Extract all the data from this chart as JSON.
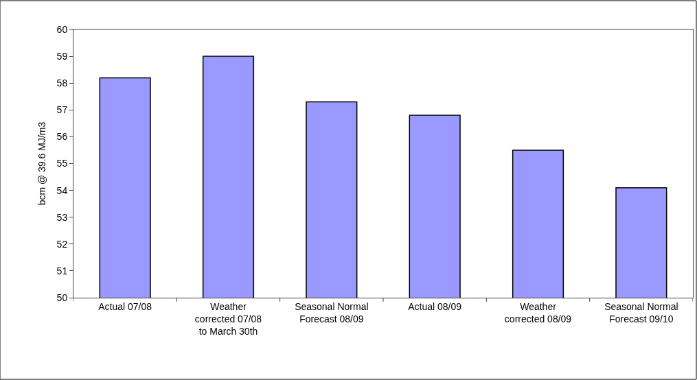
{
  "chart_data": {
    "type": "bar",
    "ylabel": "bcm @ 39.6 MJ/m3",
    "categories": [
      "Actual 07/08",
      "Weather corrected 07/08 to March 30th",
      "Seasonal Normal Forecast 08/09",
      "Actual 08/09",
      "Weather corrected 08/09",
      "Seasonal Normal Forecast 09/10"
    ],
    "values": [
      58.2,
      59.0,
      57.3,
      56.8,
      55.5,
      54.1
    ],
    "color": "#9999ff",
    "ylim": [
      50,
      60
    ],
    "yticks": [
      50,
      51,
      52,
      53,
      54,
      55,
      56,
      57,
      58,
      59,
      60
    ]
  }
}
